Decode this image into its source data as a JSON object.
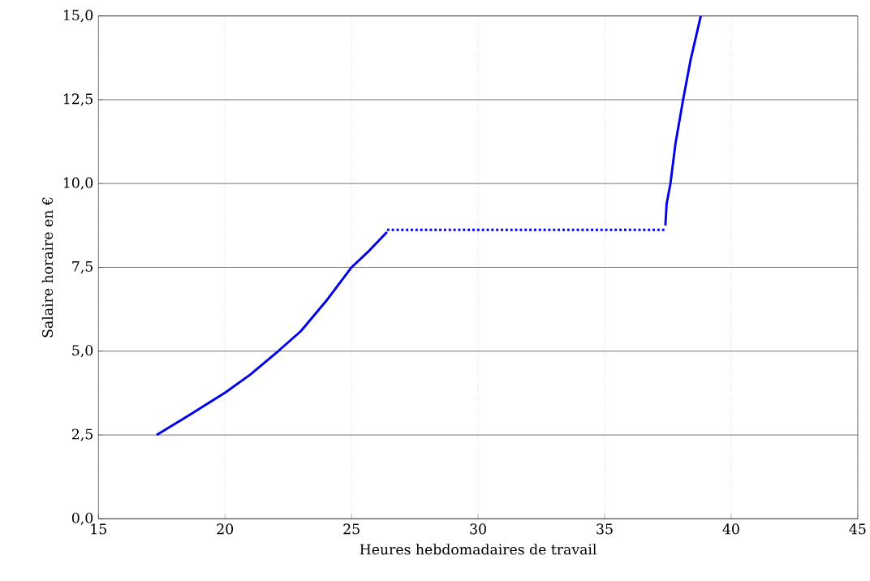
{
  "chart_data": {
    "type": "line",
    "xlabel": "Heures hebdomadaires de travail",
    "ylabel": "Salaire horaire en €",
    "xlim": [
      15,
      45
    ],
    "ylim": [
      0,
      15
    ],
    "xticks": [
      15,
      20,
      25,
      30,
      35,
      40,
      45
    ],
    "yticks": [
      {
        "value": 0,
        "label": "0,0"
      },
      {
        "value": 2.5,
        "label": "2,5"
      },
      {
        "value": 5,
        "label": "5,0"
      },
      {
        "value": 7.5,
        "label": "7,5"
      },
      {
        "value": 10,
        "label": "10,0"
      },
      {
        "value": 12.5,
        "label": "12,5"
      },
      {
        "value": 15,
        "label": "15,0"
      }
    ],
    "grid": true,
    "marker": "none",
    "series": [
      {
        "color": "#0000ee",
        "line_style": "solid",
        "x": [
          17.3,
          18.5,
          20,
          21,
          22.1,
          23,
          24,
          25,
          25.7,
          26.4
        ],
        "values": [
          2.5,
          3.05,
          3.76,
          4.3,
          5.0,
          5.6,
          6.5,
          7.5,
          8.0,
          8.55
        ]
      },
      {
        "color": "#0000ee",
        "line_style": "dotted",
        "x": [
          26.4,
          37.4
        ],
        "values": [
          8.62,
          8.62
        ]
      },
      {
        "color": "#0000ee",
        "line_style": "solid",
        "x": [
          37.4,
          37.45,
          37.6,
          37.8,
          38.1,
          38.4,
          38.8
        ],
        "values": [
          8.75,
          9.4,
          10.0,
          11.2,
          12.5,
          13.7,
          15.0
        ]
      }
    ]
  }
}
